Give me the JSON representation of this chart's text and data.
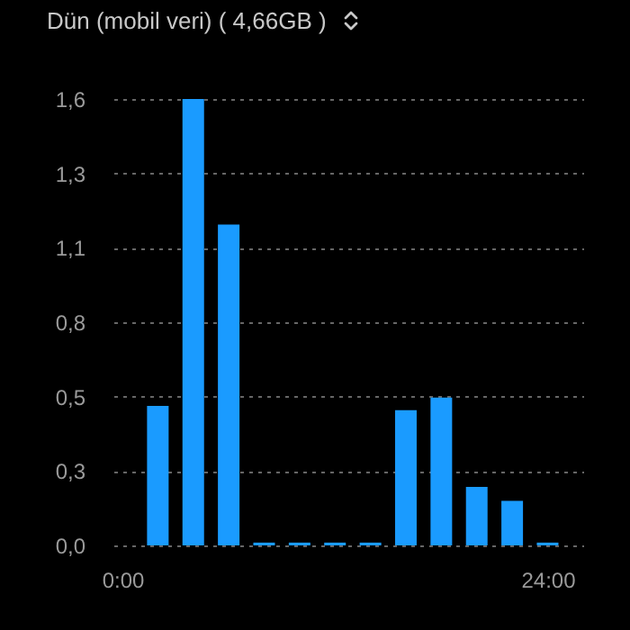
{
  "chart_data": {
    "type": "bar",
    "title": "Dün (mobil veri) ( 4,66GB )",
    "x": [
      2,
      4,
      6,
      8,
      10,
      12,
      14,
      16,
      18,
      20,
      22,
      24
    ],
    "series": [
      {
        "color": "#1a9bff",
        "values": [
          0.5,
          1.6,
          1.15,
          0.01,
          0.01,
          0.01,
          0.01,
          0.485,
          0.53,
          0.21,
          0.16,
          0.01
        ]
      }
    ],
    "xlim": [
      0,
      25.5
    ],
    "xticks": [
      {
        "value": 0,
        "label": "0:00"
      },
      {
        "value": 24,
        "label": "24:00"
      }
    ],
    "ylim": [
      0,
      1.6
    ],
    "yticks": [
      {
        "value": 0,
        "label": "0,0"
      },
      {
        "value": 0.2667,
        "label": "0,3"
      },
      {
        "value": 0.5333,
        "label": "0,5"
      },
      {
        "value": 0.8,
        "label": "0,8"
      },
      {
        "value": 1.0667,
        "label": "1,1"
      },
      {
        "value": 1.3333,
        "label": "1,3"
      },
      {
        "value": 1.6,
        "label": "1,6"
      }
    ],
    "grid": "y",
    "legend": false
  }
}
